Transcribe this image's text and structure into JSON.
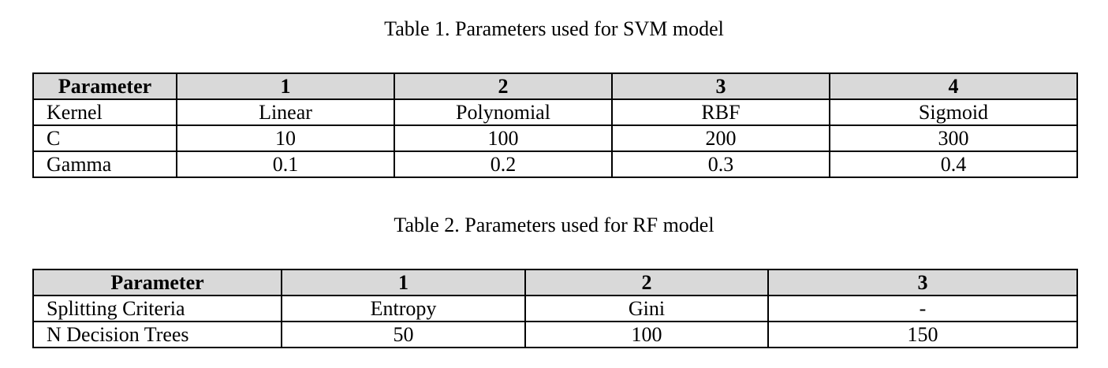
{
  "table1": {
    "caption": "Table 1. Parameters used for SVM model",
    "headers": [
      "Parameter",
      "1",
      "2",
      "3",
      "4"
    ],
    "rows": [
      [
        "Kernel",
        "Linear",
        "Polynomial",
        "RBF",
        "Sigmoid"
      ],
      [
        "C",
        "10",
        "100",
        "200",
        "300"
      ],
      [
        "Gamma",
        "0.1",
        "0.2",
        "0.3",
        "0.4"
      ]
    ]
  },
  "table2": {
    "caption": "Table 2. Parameters used for RF model",
    "headers": [
      "Parameter",
      "1",
      "2",
      "3"
    ],
    "rows": [
      [
        "Splitting Criteria",
        "Entropy",
        "Gini",
        "-"
      ],
      [
        "N Decision Trees",
        "50",
        "100",
        "150"
      ]
    ]
  }
}
